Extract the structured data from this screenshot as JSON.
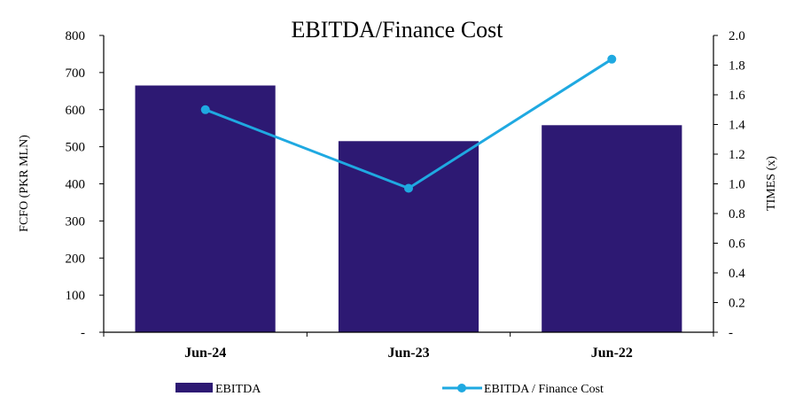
{
  "chart_data": {
    "type": "bar+line",
    "title": "EBITDA/Finance  Cost",
    "categories": [
      "Jun-24",
      "Jun-23",
      "Jun-22"
    ],
    "series": [
      {
        "name": "EBITDA",
        "type": "bar",
        "axis": "left",
        "color": "#2d1973",
        "values": [
          665,
          515,
          558
        ]
      },
      {
        "name": "EBITDA / Finance Cost",
        "type": "line",
        "axis": "right",
        "color": "#1fa9e1",
        "values": [
          1.5,
          0.97,
          1.84
        ]
      }
    ],
    "ylabel": "FCFO (PKR MLN)",
    "y2label": "TIMES (x)",
    "ylim": [
      0,
      800
    ],
    "y2lim": [
      0,
      2.0
    ],
    "yticks": [
      "-",
      "100",
      "200",
      "300",
      "400",
      "500",
      "600",
      "700",
      "800"
    ],
    "y2ticks": [
      "-",
      "0.2",
      "0.4",
      "0.6",
      "0.8",
      "1.0",
      "1.2",
      "1.4",
      "1.6",
      "1.8",
      "2.0"
    ],
    "grid": false,
    "legend": "bottom"
  }
}
